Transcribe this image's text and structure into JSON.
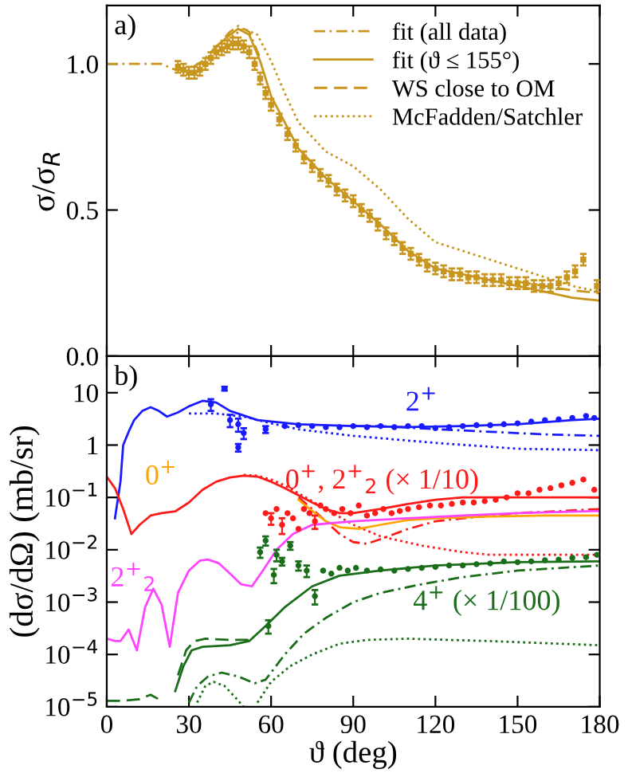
{
  "chart_data": [
    {
      "type": "line",
      "ylabel": "σ/σ$_{R}$",
      "annotations": [
        "a)"
      ],
      "xlim": [
        0,
        180
      ],
      "xticks": [
        0,
        30,
        60,
        90,
        120,
        150,
        180
      ],
      "ylim": [
        0,
        1.2
      ],
      "yticks": [
        {
          "value": 0,
          "label": "0.0"
        },
        {
          "value": 0.5,
          "label": "0.5"
        },
        {
          "value": 1,
          "label": "1.0"
        }
      ],
      "tick_labels": "y",
      "legend": "top right",
      "grid": false,
      "series": [
        {
          "type": "scatter",
          "color": "#c8961e",
          "marker": "square",
          "x": [
            26,
            28,
            30,
            32,
            34,
            36,
            38,
            40,
            42,
            44,
            46,
            48,
            50,
            52,
            54,
            56,
            58,
            60,
            63,
            66,
            69,
            72,
            75,
            78,
            81,
            84,
            87,
            90,
            93,
            96,
            99,
            102,
            105,
            108,
            111,
            114,
            117,
            120,
            123,
            126,
            129,
            132,
            135,
            138,
            141,
            144,
            147,
            150,
            153,
            156,
            159,
            162,
            165,
            168,
            171,
            174,
            179
          ],
          "values": [
            0.99,
            0.98,
            0.97,
            0.97,
            0.98,
            1.0,
            1.02,
            1.04,
            1.05,
            1.06,
            1.07,
            1.07,
            1.06,
            1.04,
            1.0,
            0.95,
            0.9,
            0.86,
            0.81,
            0.76,
            0.72,
            0.68,
            0.65,
            0.62,
            0.6,
            0.57,
            0.55,
            0.53,
            0.5,
            0.48,
            0.45,
            0.42,
            0.4,
            0.37,
            0.35,
            0.33,
            0.31,
            0.3,
            0.29,
            0.28,
            0.28,
            0.27,
            0.27,
            0.26,
            0.26,
            0.26,
            0.25,
            0.25,
            0.25,
            0.24,
            0.24,
            0.24,
            0.25,
            0.27,
            0.29,
            0.33,
            0.24
          ],
          "errors": [
            0.02,
            0.02,
            0.02,
            0.02,
            0.02,
            0.02,
            0.02,
            0.02,
            0.02,
            0.02,
            0.02,
            0.02,
            0.02,
            0.02,
            0.02,
            0.02,
            0.02,
            0.02,
            0.02,
            0.02,
            0.02,
            0.02,
            0.02,
            0.02,
            0.02,
            0.02,
            0.02,
            0.02,
            0.02,
            0.02,
            0.02,
            0.02,
            0.02,
            0.02,
            0.02,
            0.02,
            0.02,
            0.02,
            0.02,
            0.02,
            0.02,
            0.02,
            0.02,
            0.02,
            0.02,
            0.02,
            0.02,
            0.02,
            0.02,
            0.02,
            0.02,
            0.02,
            0.02,
            0.02,
            0.02,
            0.02,
            0.02
          ]
        },
        {
          "name": "fit (all data)",
          "color": "#c8961e",
          "line_style": "dashdot",
          "x": [
            0,
            10,
            20,
            25,
            30,
            35,
            40,
            45,
            48,
            52,
            56
          ],
          "values": [
            1.0,
            1.0,
            1.0,
            0.98,
            0.98,
            1.01,
            1.06,
            1.11,
            1.13,
            1.11,
            1.02
          ]
        },
        {
          "name": "fit (ϑ ≤ 155°)",
          "color": "#c8961e",
          "line_style": "solid",
          "x": [
            40,
            45,
            48,
            52,
            56,
            60,
            70,
            80,
            90,
            100,
            110,
            120,
            130,
            140,
            150,
            160,
            170,
            180
          ],
          "values": [
            1.06,
            1.1,
            1.12,
            1.1,
            1.01,
            0.89,
            0.71,
            0.61,
            0.53,
            0.45,
            0.36,
            0.3,
            0.28,
            0.26,
            0.24,
            0.22,
            0.2,
            0.19
          ]
        },
        {
          "name": "WS close to OM",
          "color": "#c8961e",
          "line_style": "dashed",
          "x": [
            150,
            160,
            170,
            180
          ],
          "values": [
            0.255,
            0.24,
            0.225,
            0.215
          ]
        },
        {
          "name": "McFadden/Satchler",
          "color": "#c8961e",
          "line_style": "dotted",
          "x": [
            40,
            45,
            50,
            55,
            60,
            65,
            70,
            80,
            90,
            100,
            110,
            120,
            130,
            140,
            150,
            160,
            170,
            180
          ],
          "values": [
            1.04,
            1.09,
            1.12,
            1.1,
            1.01,
            0.9,
            0.8,
            0.7,
            0.65,
            0.57,
            0.47,
            0.39,
            0.36,
            0.33,
            0.3,
            0.27,
            0.24,
            0.22
          ]
        }
      ]
    },
    {
      "type": "line",
      "xlabel": "ϑ (deg)",
      "ylabel": "(dσ/dΩ) (mb/sr)",
      "annotations": [
        "b)"
      ],
      "log": "y",
      "xlim": [
        0,
        180
      ],
      "xticks": [
        0,
        30,
        60,
        90,
        120,
        150,
        180
      ],
      "ylim": [
        1e-05,
        50
      ],
      "yticks": [
        {
          "value": 1e-05,
          "label": "10$^{−5}$"
        },
        {
          "value": 0.0001,
          "label": "10$^{−4}$"
        },
        {
          "value": 0.001,
          "label": "10$^{−3}$"
        },
        {
          "value": 0.01,
          "label": "10$^{−2}$"
        },
        {
          "value": 0.1,
          "label": "10$^{−1}$"
        },
        1,
        10
      ],
      "grid": false,
      "series": [
        {
          "type": "scatter",
          "name": "2$^{+}$",
          "color": "#1a1aff",
          "marker": "circle",
          "x": [
            38,
            43,
            45,
            48,
            48,
            50,
            58,
            65,
            70,
            75,
            80,
            85,
            90,
            95,
            100,
            105,
            110,
            115,
            120,
            125,
            130,
            135,
            140,
            145,
            150,
            155,
            160,
            165,
            170,
            175,
            178
          ],
          "values": [
            6,
            12,
            3,
            2.5,
            0.9,
            1.7,
            2,
            2.3,
            2.4,
            2.3,
            2.2,
            2.2,
            2.3,
            2.2,
            2.3,
            2.2,
            2.3,
            2.3,
            2.1,
            2.2,
            2.3,
            2.4,
            2.4,
            2.5,
            2.6,
            2.8,
            3.0,
            3.1,
            3.3,
            3.6,
            3.3
          ],
          "errors": [
            1.5,
            1,
            0.8,
            0.7,
            0.15,
            0.4,
            0.3,
            null,
            null,
            null,
            null,
            null,
            null,
            null,
            null,
            null,
            null,
            null,
            null,
            null,
            null,
            null,
            null,
            null,
            null,
            null,
            null,
            null,
            null,
            null,
            null
          ]
        },
        {
          "color": "#1a1aff",
          "line_style": "solid",
          "x": [
            3,
            5,
            6,
            8,
            10,
            13,
            16,
            19,
            22,
            26,
            30,
            35,
            40,
            45,
            55,
            70,
            90,
            110,
            130,
            150,
            170,
            180
          ],
          "values": [
            0.04,
            0.2,
            1,
            1.8,
            3,
            4.5,
            5.3,
            4.5,
            3.5,
            4.2,
            5.5,
            7,
            6.5,
            4.5,
            3,
            2.5,
            2.3,
            2.2,
            2.3,
            2.5,
            3,
            3.2
          ]
        },
        {
          "color": "#1a1aff",
          "line_style": "dashdot",
          "x": [
            90,
            100,
            130,
            160,
            180
          ],
          "values": [
            2.3,
            2.3,
            1.9,
            1.6,
            1.5
          ]
        },
        {
          "color": "#1a1aff",
          "line_style": "dotted",
          "x": [
            30,
            40,
            50,
            60,
            70,
            90,
            120,
            150,
            180
          ],
          "values": [
            4,
            4,
            3.5,
            2.6,
            2,
            1.5,
            1.1,
            0.85,
            0.8
          ]
        },
        {
          "type": "scatter",
          "name": "0$^{+}$, 2$^{+}$$_{2}$ (× 1/10)",
          "color": "#ff1a1a",
          "marker": "circle",
          "x": [
            58,
            60,
            62,
            64,
            66,
            68,
            70,
            72,
            74,
            76,
            78,
            80,
            83,
            86,
            89,
            92,
            95,
            98,
            101,
            104,
            107,
            110,
            114,
            118,
            122,
            126,
            130,
            134,
            138,
            142,
            146,
            150,
            154,
            158,
            162,
            166,
            170,
            174,
            178
          ],
          "values": [
            0.05,
            0.04,
            0.06,
            0.03,
            0.05,
            0.04,
            0.025,
            0.06,
            0.05,
            0.035,
            0.07,
            0.06,
            0.05,
            0.06,
            0.05,
            0.07,
            0.045,
            0.05,
            0.06,
            0.05,
            0.055,
            0.06,
            0.065,
            0.07,
            0.07,
            0.075,
            0.08,
            0.08,
            0.085,
            0.09,
            0.1,
            0.12,
            0.12,
            0.14,
            0.15,
            0.17,
            0.19,
            0.22,
            0.14
          ],
          "errors": [
            null,
            0.01,
            null,
            0.01,
            null,
            null,
            null,
            null,
            null,
            0.01,
            null,
            null,
            null,
            null,
            null,
            null,
            null,
            null,
            null,
            null,
            null,
            null,
            null,
            null,
            null,
            null,
            null,
            null,
            null,
            null,
            null,
            null,
            null,
            null,
            null,
            null,
            null,
            null,
            null
          ]
        },
        {
          "color": "#ff1a1a",
          "line_style": "solid",
          "x": [
            0,
            3,
            6,
            9,
            12,
            16,
            20,
            25,
            30,
            35,
            40,
            45,
            50,
            55,
            60,
            65,
            70,
            75,
            80,
            85,
            90,
            100,
            110,
            120,
            130,
            150,
            180
          ],
          "values": [
            0.25,
            0.15,
            0.06,
            0.02,
            0.03,
            0.045,
            0.05,
            0.054,
            0.08,
            0.14,
            0.2,
            0.24,
            0.26,
            0.25,
            0.2,
            0.15,
            0.11,
            0.08,
            0.06,
            0.05,
            0.05,
            0.06,
            0.075,
            0.09,
            0.1,
            0.1,
            0.1
          ]
        },
        {
          "color": "#ff1a1a",
          "line_style": "dashdot",
          "x": [
            70,
            75,
            80,
            85,
            90,
            95,
            100,
            110,
            120,
            130,
            150,
            180
          ],
          "values": [
            0.1,
            0.06,
            0.035,
            0.02,
            0.014,
            0.013,
            0.016,
            0.025,
            0.035,
            0.04,
            0.05,
            0.06
          ]
        },
        {
          "color": "#ff1a1a",
          "line_style": "dotted",
          "x": [
            50,
            55,
            60,
            65,
            70,
            80,
            90,
            100,
            115,
            130,
            140,
            160,
            180
          ],
          "values": [
            0.27,
            0.26,
            0.22,
            0.17,
            0.12,
            0.06,
            0.03,
            0.018,
            0.012,
            0.009,
            0.008,
            0.008,
            0.008
          ]
        },
        {
          "name": "0$^{+}$",
          "color": "#ffa500",
          "line_style": "solid",
          "x": [
            70,
            75,
            80,
            85,
            92,
            100,
            110,
            120,
            140,
            160,
            180
          ],
          "values": [
            0.09,
            0.055,
            0.035,
            0.027,
            0.025,
            0.03,
            0.037,
            0.04,
            0.043,
            0.045,
            0.045
          ]
        },
        {
          "name": "2$^{+}$$_{2}$",
          "color": "#ff44ff",
          "line_style": "solid",
          "x": [
            0,
            3,
            5,
            8,
            11,
            14,
            17,
            20,
            23,
            26,
            30,
            34,
            37,
            41,
            45,
            49,
            53,
            57,
            62,
            68,
            75,
            90,
            110,
            130,
            150,
            180
          ],
          "values": [
            0.0002,
            0.00018,
            0.00018,
            0.0003,
            0.00012,
            0.0008,
            0.0018,
            0.0009,
            0.00014,
            0.0015,
            0.004,
            0.0062,
            0.0065,
            0.0055,
            0.0035,
            0.0022,
            0.002,
            0.004,
            0.01,
            0.02,
            0.03,
            0.035,
            0.04,
            0.045,
            0.05,
            0.055
          ]
        },
        {
          "type": "scatter",
          "name": "4$^{+}$ (× 1/100)",
          "color": "#1a6e1a",
          "marker": "circle",
          "x": [
            56,
            58,
            59,
            61,
            62,
            64,
            67,
            70,
            73,
            76,
            79,
            82,
            85,
            88,
            91,
            95,
            100,
            105,
            110,
            115,
            120,
            125,
            130,
            135,
            140,
            145,
            150,
            155,
            160,
            165,
            170,
            175,
            179
          ],
          "values": [
            0.009,
            0.015,
            0.00035,
            0.0033,
            0.008,
            0.006,
            0.012,
            0.005,
            0.004,
            0.0013,
            0.004,
            0.0035,
            0.0045,
            0.004,
            0.0045,
            0.004,
            0.0042,
            0.004,
            0.0043,
            0.0045,
            0.0047,
            0.005,
            0.005,
            0.0053,
            0.0055,
            0.006,
            0.0058,
            0.006,
            0.0063,
            0.0065,
            0.007,
            0.0072,
            0.008
          ],
          "errors": [
            0.002,
            0.003,
            0.0001,
            0.001,
            0.002,
            0.001,
            0.002,
            0.001,
            0.001,
            0.0004,
            null,
            null,
            null,
            null,
            null,
            null,
            null,
            null,
            null,
            null,
            null,
            null,
            null,
            null,
            null,
            null,
            null,
            null,
            null,
            null,
            null,
            null,
            null
          ]
        },
        {
          "color": "#1a6e1a",
          "line_style": "solid",
          "x": [
            25,
            28,
            31,
            35,
            45,
            52,
            58,
            65,
            75,
            85,
            100,
            120,
            150,
            180
          ],
          "values": [
            2e-05,
            6e-05,
            0.00012,
            0.00014,
            0.00015,
            0.00018,
            0.00035,
            0.0008,
            0.002,
            0.0032,
            0.004,
            0.005,
            0.0058,
            0.006
          ]
        },
        {
          "color": "#1a6e1a",
          "line_style": "dashed",
          "x": [
            0,
            6,
            12,
            16,
            20,
            23,
            26,
            29,
            32,
            36,
            45,
            52
          ],
          "values": [
            1.3e-05,
            1.3e-05,
            1.4e-05,
            1.7e-05,
            1.3e-05,
            null,
            4e-05,
            0.00012,
            0.00018,
            0.0002,
            0.00019,
            0.00019
          ]
        },
        {
          "color": "#1a6e1a",
          "line_style": "dashdot",
          "x": [
            30,
            33,
            37,
            42,
            48,
            54,
            58,
            65,
            72,
            80,
            90,
            100,
            115,
            130,
            150,
            180
          ],
          "values": [
            1.2e-05,
            2.5e-05,
            3.8e-05,
            4.5e-05,
            3.8e-05,
            2.8e-05,
            3.3e-05,
            0.0001,
            0.00025,
            0.0005,
            0.001,
            0.0015,
            0.0022,
            0.003,
            0.004,
            0.005
          ]
        },
        {
          "color": "#1a6e1a",
          "line_style": "dotted",
          "x": [
            33,
            36,
            39,
            43,
            47,
            50,
            null,
            55,
            60,
            67,
            75,
            85,
            95,
            110,
            140,
            180
          ],
          "values": [
            1.2e-05,
            2.5e-05,
            3e-05,
            2.5e-05,
            1.5e-05,
            1e-05,
            null,
            1.2e-05,
            3e-05,
            6e-05,
            0.0001,
            0.00016,
            0.00019,
            0.0002,
            0.00018,
            0.00015
          ]
        }
      ]
    }
  ]
}
